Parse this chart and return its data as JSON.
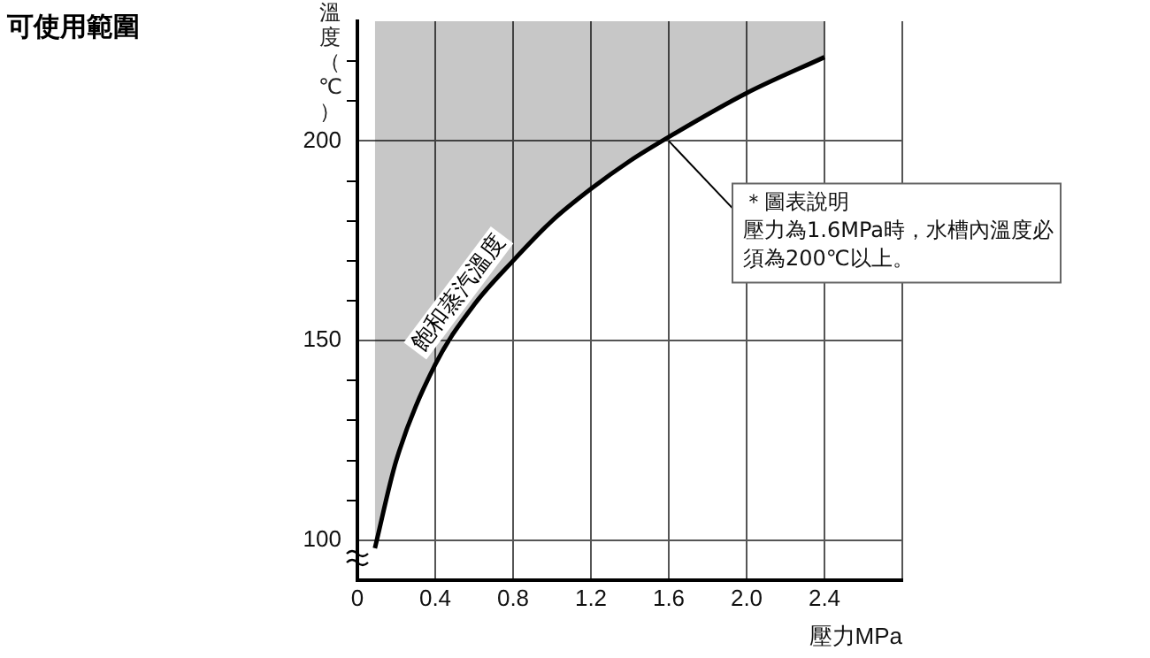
{
  "chart_data": {
    "type": "line",
    "title": "可使用範圍",
    "xlabel": "壓力MPa",
    "ylabel": "溫度（℃）",
    "x": [
      0.09,
      0.2,
      0.4,
      0.6,
      0.8,
      1.0,
      1.2,
      1.4,
      1.6,
      2.0,
      2.4
    ],
    "series": [
      {
        "name": "飽和蒸汽溫度",
        "color": "#000000",
        "values": [
          98,
          120,
          144,
          159,
          170,
          180,
          188,
          195,
          201,
          212,
          221
        ],
        "lower": [
          98,
          120,
          144,
          159,
          170,
          180,
          188,
          195,
          201,
          212,
          221
        ],
        "upper": [
          230,
          230,
          230,
          230,
          230,
          230,
          230,
          230,
          230,
          230,
          230
        ]
      }
    ],
    "xlim": [
      0,
      2.8
    ],
    "ylim": [
      90,
      230
    ],
    "xticks": [
      0,
      0.4,
      0.8,
      1.2,
      1.6,
      {
        "value": 2,
        "label": "2.0"
      },
      2.4,
      {
        "value": 2.8,
        "label": null
      }
    ],
    "yticks": [
      100,
      {
        "value": 110,
        "label": null
      },
      {
        "value": 120,
        "label": null
      },
      {
        "value": 130,
        "label": null
      },
      {
        "value": 140,
        "label": null
      },
      150,
      {
        "value": 160,
        "label": null
      },
      {
        "value": 170,
        "label": null
      },
      {
        "value": 180,
        "label": null
      },
      {
        "value": 190,
        "label": null
      },
      200,
      {
        "value": 210,
        "label": null
      },
      {
        "value": 220,
        "label": null
      }
    ],
    "grid": true,
    "legend": false,
    "marker": "none",
    "line_style": "solid",
    "annotations": [
      {
        "text": "＊圖表說明",
        "x": 1.6,
        "y": 200
      },
      "壓力為1.6MPa時，水槽內溫度必須為200℃以上。"
    ]
  }
}
